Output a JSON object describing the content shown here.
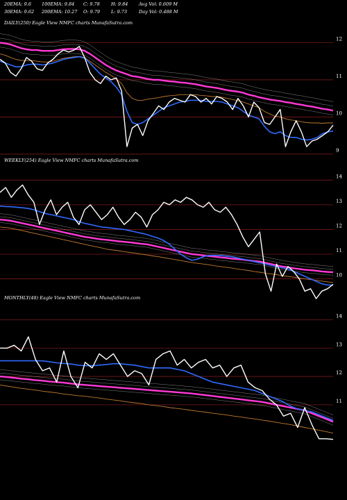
{
  "header": {
    "row1": [
      "20EMA: 9.6",
      "100EMA: 9.84",
      "C: 9.78",
      "H: 9.84",
      "Avg Vol: 0.609 M"
    ],
    "row2": [
      "30EMA: 9.62",
      "200EMA: 10.27",
      "O: 9.79",
      "L: 9.73",
      "Day Vol: 0.488 M"
    ]
  },
  "colors": {
    "background": "#000000",
    "price": "#ffffff",
    "ema_fast": "#2f6bff",
    "ema_slow": "#ff3ad6",
    "ema_mid": "#c07a2f",
    "gridline": "#7a1a1a",
    "band": "#bfbfbf"
  },
  "chart_data": [
    {
      "type": "line",
      "title": "DAILY(250) Eagle  View  NMFC charts MunafaSutra.com",
      "ylim": [
        8.7,
        12.4
      ],
      "y_ticks": [
        12,
        11,
        10,
        9
      ],
      "series": [
        {
          "role": "price",
          "values": [
            11.55,
            11.45,
            11.2,
            11.1,
            11.3,
            11.6,
            11.5,
            11.3,
            11.25,
            11.45,
            11.55,
            11.7,
            11.8,
            11.75,
            11.8,
            11.9,
            11.6,
            11.2,
            11.0,
            10.9,
            11.1,
            11.0,
            11.05,
            10.7,
            9.2,
            9.7,
            9.8,
            9.5,
            9.9,
            10.1,
            10.3,
            10.2,
            10.4,
            10.5,
            10.45,
            10.4,
            10.6,
            10.55,
            10.4,
            10.5,
            10.35,
            10.55,
            10.5,
            10.4,
            10.2,
            10.5,
            10.3,
            10.0,
            10.4,
            10.25,
            9.85,
            9.8,
            10.0,
            10.2,
            9.2,
            9.6,
            9.9,
            9.6,
            9.2,
            9.35,
            9.4,
            9.5,
            9.6,
            9.78
          ]
        },
        {
          "role": "ema_fast",
          "values": [
            11.5,
            11.45,
            11.4,
            11.35,
            11.35,
            11.4,
            11.42,
            11.42,
            11.4,
            11.42,
            11.45,
            11.5,
            11.55,
            11.58,
            11.6,
            11.62,
            11.58,
            11.45,
            11.3,
            11.15,
            11.05,
            10.95,
            10.8,
            10.6,
            10.15,
            9.85,
            9.8,
            9.85,
            9.95,
            10.05,
            10.15,
            10.25,
            10.3,
            10.35,
            10.4,
            10.42,
            10.45,
            10.45,
            10.45,
            10.42,
            10.42,
            10.42,
            10.4,
            10.35,
            10.3,
            10.25,
            10.15,
            10.05,
            10.0,
            9.95,
            9.75,
            9.6,
            9.55,
            9.6,
            9.5,
            9.45,
            9.45,
            9.4,
            9.38,
            9.4,
            9.45,
            9.55,
            9.6,
            9.62
          ]
        },
        {
          "role": "ema_slow",
          "values": [
            12.0,
            11.98,
            11.95,
            11.9,
            11.85,
            11.82,
            11.8,
            11.8,
            11.78,
            11.78,
            11.78,
            11.8,
            11.82,
            11.83,
            11.83,
            11.82,
            11.78,
            11.7,
            11.6,
            11.5,
            11.4,
            11.32,
            11.25,
            11.2,
            11.15,
            11.1,
            11.08,
            11.05,
            11.02,
            11.0,
            11.0,
            10.98,
            10.96,
            10.95,
            10.93,
            10.92,
            10.9,
            10.88,
            10.85,
            10.82,
            10.8,
            10.78,
            10.75,
            10.72,
            10.7,
            10.68,
            10.65,
            10.6,
            10.57,
            10.53,
            10.5,
            10.47,
            10.45,
            10.43,
            10.4,
            10.38,
            10.35,
            10.33,
            10.3,
            10.28,
            10.25,
            10.22,
            10.2,
            10.17
          ]
        },
        {
          "role": "ema_mid",
          "values": [
            11.7,
            11.66,
            11.6,
            11.55,
            11.52,
            11.52,
            11.52,
            11.5,
            11.48,
            11.48,
            11.5,
            11.54,
            11.58,
            11.6,
            11.62,
            11.63,
            11.6,
            11.5,
            11.4,
            11.3,
            11.2,
            11.12,
            11.02,
            10.9,
            10.65,
            10.5,
            10.45,
            10.45,
            10.48,
            10.5,
            10.52,
            10.55,
            10.57,
            10.58,
            10.6,
            10.6,
            10.6,
            10.6,
            10.58,
            10.57,
            10.55,
            10.55,
            10.53,
            10.5,
            10.47,
            10.44,
            10.4,
            10.35,
            10.3,
            10.25,
            10.15,
            10.08,
            10.02,
            10.0,
            9.95,
            9.92,
            9.9,
            9.87,
            9.85,
            9.84,
            9.84,
            9.83,
            9.84,
            9.84
          ]
        }
      ]
    },
    {
      "type": "line",
      "title": "WEEKLY(254) Eagle  View  NMFC charts MunafaSutra.com",
      "ylim": [
        9.2,
        14.6
      ],
      "y_ticks": [
        14,
        13,
        12,
        11,
        10
      ],
      "series": [
        {
          "role": "price",
          "values": [
            13.5,
            13.7,
            13.3,
            13.6,
            13.8,
            13.4,
            13.1,
            12.2,
            12.8,
            13.2,
            12.6,
            12.9,
            13.1,
            12.5,
            12.2,
            12.8,
            13.0,
            12.7,
            12.4,
            12.6,
            12.9,
            12.5,
            12.2,
            12.4,
            12.7,
            12.5,
            12.1,
            12.6,
            12.8,
            13.1,
            13.0,
            13.2,
            13.1,
            13.3,
            13.2,
            13.0,
            12.9,
            13.1,
            12.8,
            12.7,
            12.9,
            12.6,
            12.2,
            11.7,
            11.3,
            11.6,
            11.9,
            10.2,
            9.5,
            10.6,
            10.1,
            10.5,
            10.3,
            10.0,
            9.5,
            9.6,
            9.2,
            9.5,
            9.6,
            9.78
          ]
        },
        {
          "role": "ema_fast",
          "values": [
            12.95,
            12.93,
            12.92,
            12.9,
            12.88,
            12.85,
            12.8,
            12.72,
            12.65,
            12.6,
            12.55,
            12.5,
            12.45,
            12.4,
            12.32,
            12.25,
            12.2,
            12.15,
            12.1,
            12.08,
            12.05,
            12.02,
            12.0,
            11.95,
            11.9,
            11.85,
            11.8,
            11.72,
            11.65,
            11.55,
            11.4,
            11.2,
            11.0,
            10.85,
            10.75,
            10.8,
            10.9,
            10.95,
            10.95,
            10.95,
            10.92,
            10.9,
            10.85,
            10.8,
            10.75,
            10.7,
            10.65,
            10.6,
            10.55,
            10.5,
            10.45,
            10.4,
            10.3,
            10.2,
            10.1,
            10.0,
            9.9,
            9.8,
            9.75,
            9.75
          ]
        },
        {
          "role": "ema_slow",
          "values": [
            12.4,
            12.38,
            12.35,
            12.3,
            12.25,
            12.2,
            12.15,
            12.1,
            12.05,
            12.0,
            11.95,
            11.9,
            11.85,
            11.8,
            11.75,
            11.7,
            11.67,
            11.63,
            11.6,
            11.58,
            11.55,
            11.52,
            11.5,
            11.48,
            11.45,
            11.42,
            11.4,
            11.35,
            11.3,
            11.25,
            11.2,
            11.15,
            11.1,
            11.05,
            11.0,
            10.98,
            10.95,
            10.92,
            10.9,
            10.87,
            10.85,
            10.82,
            10.8,
            10.78,
            10.75,
            10.72,
            10.7,
            10.65,
            10.6,
            10.55,
            10.5,
            10.47,
            10.43,
            10.4,
            10.37,
            10.35,
            10.33,
            10.3,
            10.28,
            10.27
          ]
        },
        {
          "role": "ema_mid",
          "values": [
            12.1,
            12.08,
            12.05,
            12.0,
            11.95,
            11.9,
            11.85,
            11.8,
            11.75,
            11.7,
            11.65,
            11.6,
            11.55,
            11.5,
            11.45,
            11.4,
            11.35,
            11.3,
            11.25,
            11.2,
            11.17,
            11.14,
            11.1,
            11.07,
            11.04,
            11.0,
            10.97,
            10.93,
            10.9,
            10.86,
            10.82,
            10.78,
            10.74,
            10.7,
            10.66,
            10.63,
            10.6,
            10.57,
            10.53,
            10.5,
            10.47,
            10.44,
            10.4,
            10.37,
            10.34,
            10.3,
            10.27,
            10.23,
            10.2,
            10.17,
            10.13,
            10.1,
            10.07,
            10.03,
            10.0,
            9.97,
            9.94,
            9.91,
            9.88,
            9.85
          ]
        }
      ]
    },
    {
      "type": "line",
      "title": "MONTHLY(48) Eagle  View  NMFC charts MunafaSutra.com",
      "ylim": [
        9.6,
        14.6
      ],
      "y_ticks": [
        14,
        13,
        12,
        11
      ],
      "series": [
        {
          "role": "price",
          "values": [
            13.0,
            13.0,
            13.1,
            12.9,
            13.4,
            12.6,
            12.2,
            12.3,
            11.8,
            12.9,
            12.0,
            11.6,
            12.5,
            12.3,
            12.8,
            12.6,
            12.8,
            12.4,
            12.0,
            12.2,
            12.1,
            11.7,
            12.6,
            12.8,
            12.9,
            12.4,
            12.6,
            12.3,
            12.5,
            12.6,
            12.3,
            12.4,
            12.0,
            12.3,
            12.4,
            11.8,
            11.6,
            11.5,
            11.2,
            11.0,
            10.6,
            10.7,
            10.2,
            10.9,
            10.3,
            9.8,
            9.8,
            9.78
          ]
        },
        {
          "role": "ema_fast",
          "values": [
            12.55,
            12.55,
            12.55,
            12.55,
            12.55,
            12.55,
            12.55,
            12.52,
            12.48,
            12.46,
            12.44,
            12.4,
            12.38,
            12.38,
            12.4,
            12.42,
            12.45,
            12.45,
            12.42,
            12.4,
            12.35,
            12.3,
            12.3,
            12.3,
            12.3,
            12.25,
            12.2,
            12.1,
            12.0,
            11.9,
            11.8,
            11.75,
            11.7,
            11.65,
            11.6,
            11.55,
            11.5,
            11.4,
            11.3,
            11.2,
            11.1,
            10.95,
            10.85,
            10.8,
            10.75,
            10.65,
            10.55,
            10.45
          ]
        },
        {
          "role": "ema_slow",
          "values": [
            12.0,
            11.98,
            11.95,
            11.92,
            11.9,
            11.87,
            11.85,
            11.82,
            11.8,
            11.78,
            11.75,
            11.72,
            11.7,
            11.68,
            11.66,
            11.64,
            11.62,
            11.6,
            11.58,
            11.56,
            11.54,
            11.52,
            11.5,
            11.48,
            11.46,
            11.44,
            11.42,
            11.4,
            11.37,
            11.34,
            11.31,
            11.28,
            11.25,
            11.22,
            11.19,
            11.16,
            11.13,
            11.1,
            11.05,
            11.0,
            10.95,
            10.9,
            10.85,
            10.8,
            10.7,
            10.6,
            10.5,
            10.4
          ]
        },
        {
          "role": "ema_mid",
          "values": [
            11.7,
            11.66,
            11.62,
            11.58,
            11.55,
            11.52,
            11.48,
            11.45,
            11.42,
            11.38,
            11.35,
            11.32,
            11.3,
            11.27,
            11.24,
            11.2,
            11.17,
            11.14,
            11.1,
            11.07,
            11.04,
            11.0,
            10.97,
            10.94,
            10.9,
            10.87,
            10.84,
            10.8,
            10.77,
            10.74,
            10.7,
            10.67,
            10.64,
            10.6,
            10.57,
            10.53,
            10.5,
            10.46,
            10.42,
            10.38,
            10.34,
            10.3,
            10.25,
            10.2,
            10.15,
            10.1,
            10.05,
            10.0
          ]
        }
      ]
    }
  ]
}
